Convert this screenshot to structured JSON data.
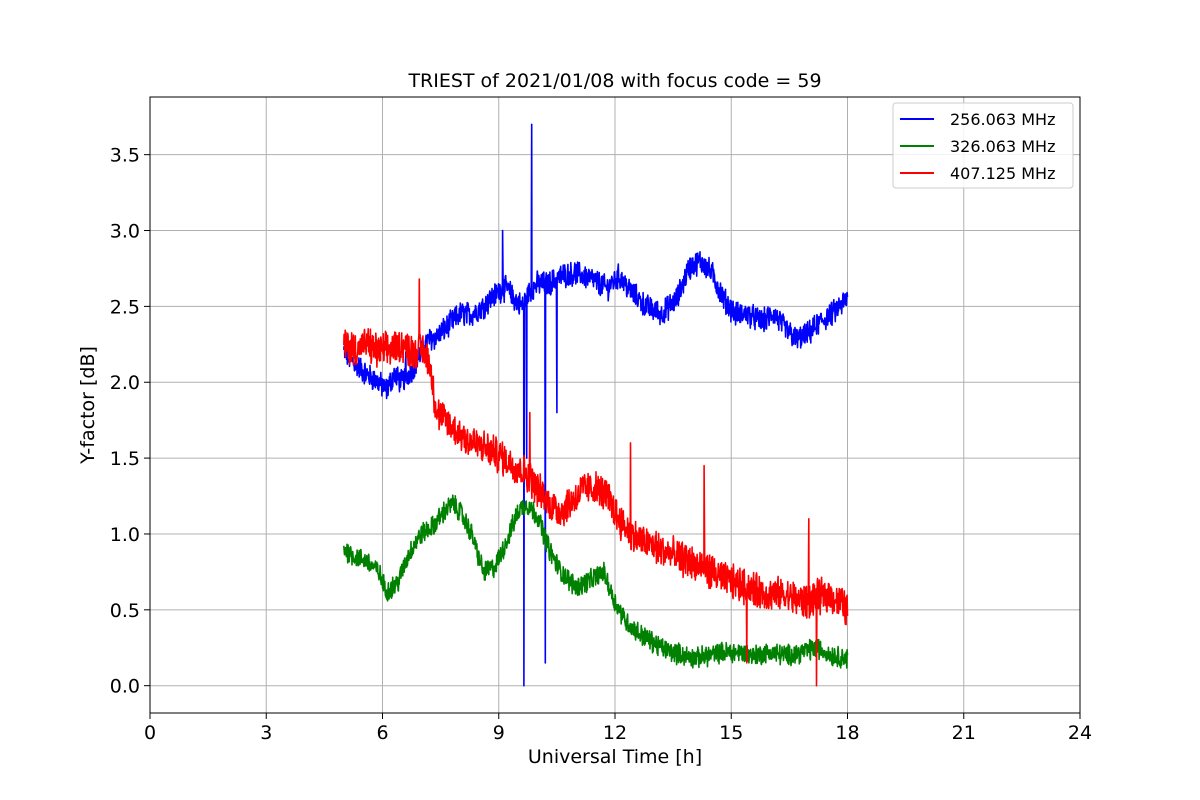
{
  "chart_data": {
    "type": "line",
    "title": "TRIEST of 2021/01/08 with focus code = 59",
    "xlabel": "Universal Time [h]",
    "ylabel": "Y-factor [dB]",
    "xlim": [
      0,
      24
    ],
    "ylim": [
      -0.18,
      3.88
    ],
    "x_ticks": [
      0,
      3,
      6,
      9,
      12,
      15,
      18,
      21,
      24
    ],
    "y_ticks": [
      0.0,
      0.5,
      1.0,
      1.5,
      2.0,
      2.5,
      3.0,
      3.5
    ],
    "x_tick_labels": [
      "0",
      "3",
      "6",
      "9",
      "12",
      "15",
      "18",
      "21",
      "24"
    ],
    "y_tick_labels": [
      "0.0",
      "0.5",
      "1.0",
      "1.5",
      "2.0",
      "2.5",
      "3.0",
      "3.5"
    ],
    "grid": true,
    "legend_position": "top-right",
    "series": [
      {
        "name": "256.063 MHz",
        "color": "#0000ff",
        "noise": 0.07,
        "x": [
          5.0,
          5.3,
          5.6,
          5.9,
          6.1,
          6.3,
          6.5,
          6.8,
          7.0,
          7.2,
          7.4,
          7.6,
          7.8,
          8.0,
          8.3,
          8.6,
          8.8,
          9.0,
          9.2,
          9.4,
          9.6,
          9.8,
          10.0,
          10.3,
          10.6,
          11.0,
          11.4,
          11.8,
          12.1,
          12.4,
          12.8,
          13.2,
          13.6,
          13.9,
          14.2,
          14.5,
          14.8,
          15.1,
          15.4,
          15.8,
          16.1,
          16.4,
          16.7,
          17.0,
          17.3,
          17.6,
          18.0
        ],
        "y": [
          2.2,
          2.12,
          2.05,
          2.0,
          1.95,
          2.05,
          2.0,
          2.1,
          2.2,
          2.28,
          2.3,
          2.35,
          2.4,
          2.45,
          2.45,
          2.5,
          2.55,
          2.6,
          2.62,
          2.55,
          2.5,
          2.6,
          2.65,
          2.65,
          2.7,
          2.72,
          2.68,
          2.62,
          2.7,
          2.6,
          2.5,
          2.45,
          2.55,
          2.75,
          2.8,
          2.72,
          2.55,
          2.45,
          2.45,
          2.4,
          2.45,
          2.35,
          2.28,
          2.32,
          2.4,
          2.45,
          2.55
        ],
        "spikes": [
          [
            9.65,
            0.0
          ],
          [
            9.72,
            1.5
          ],
          [
            9.85,
            3.7
          ],
          [
            10.2,
            0.15
          ],
          [
            10.5,
            1.8
          ],
          [
            9.1,
            3.0
          ],
          [
            6.6,
            2.2
          ]
        ]
      },
      {
        "name": "326.063 MHz",
        "color": "#008000",
        "noise": 0.06,
        "x": [
          5.0,
          5.3,
          5.6,
          5.9,
          6.1,
          6.4,
          6.7,
          7.0,
          7.3,
          7.6,
          7.8,
          8.0,
          8.3,
          8.6,
          8.9,
          9.2,
          9.5,
          9.7,
          10.0,
          10.3,
          10.6,
          11.0,
          11.4,
          11.7,
          12.0,
          12.3,
          12.6,
          12.9,
          13.2,
          13.5,
          13.8,
          14.1,
          14.4,
          14.8,
          15.2,
          15.6,
          16.0,
          16.4,
          16.8,
          17.2,
          17.6,
          18.0
        ],
        "y": [
          0.9,
          0.85,
          0.82,
          0.75,
          0.62,
          0.68,
          0.88,
          1.0,
          1.05,
          1.15,
          1.2,
          1.15,
          1.0,
          0.75,
          0.78,
          0.95,
          1.15,
          1.2,
          1.12,
          0.9,
          0.75,
          0.65,
          0.7,
          0.75,
          0.55,
          0.42,
          0.35,
          0.3,
          0.25,
          0.22,
          0.2,
          0.18,
          0.2,
          0.22,
          0.22,
          0.2,
          0.22,
          0.2,
          0.22,
          0.25,
          0.2,
          0.18
        ],
        "spikes": []
      },
      {
        "name": "407.125 MHz",
        "color": "#ff0000",
        "noise": 0.1,
        "x": [
          5.0,
          5.3,
          5.6,
          5.9,
          6.2,
          6.5,
          6.8,
          7.0,
          7.2,
          7.4,
          7.6,
          7.9,
          8.2,
          8.5,
          8.8,
          9.1,
          9.4,
          9.7,
          10.0,
          10.3,
          10.6,
          10.9,
          11.2,
          11.5,
          11.8,
          12.1,
          12.4,
          12.7,
          13.0,
          13.3,
          13.6,
          13.9,
          14.2,
          14.5,
          14.8,
          15.1,
          15.4,
          15.7,
          16.0,
          16.3,
          16.6,
          16.9,
          17.2,
          17.5,
          17.8,
          18.0
        ],
        "y": [
          2.25,
          2.22,
          2.25,
          2.2,
          2.22,
          2.25,
          2.2,
          2.22,
          2.15,
          1.8,
          1.75,
          1.68,
          1.62,
          1.58,
          1.55,
          1.5,
          1.45,
          1.4,
          1.3,
          1.2,
          1.15,
          1.22,
          1.3,
          1.3,
          1.25,
          1.1,
          1.0,
          0.95,
          0.92,
          0.88,
          0.85,
          0.82,
          0.78,
          0.75,
          0.7,
          0.68,
          0.65,
          0.62,
          0.6,
          0.6,
          0.58,
          0.55,
          0.58,
          0.6,
          0.55,
          0.5
        ],
        "spikes": [
          [
            6.95,
            2.68
          ],
          [
            17.2,
            0.0
          ],
          [
            15.4,
            0.15
          ],
          [
            14.3,
            1.45
          ],
          [
            12.4,
            1.6
          ],
          [
            17.0,
            1.1
          ],
          [
            9.8,
            1.8
          ]
        ]
      }
    ]
  }
}
